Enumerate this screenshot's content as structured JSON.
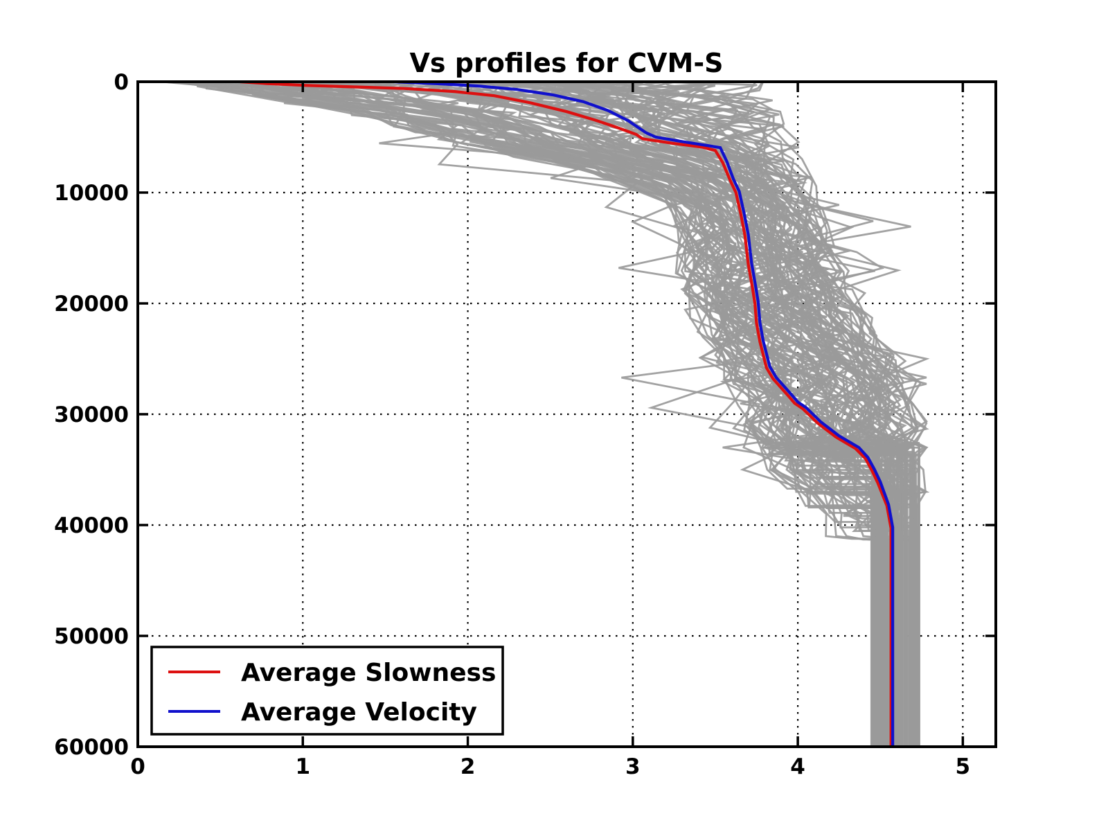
{
  "figure": {
    "background": "#ffffff"
  },
  "chart_data": {
    "type": "line",
    "title": "Vs profiles for CVM-S",
    "xlabel": "",
    "ylabel": "",
    "xlim": [
      0,
      5.2
    ],
    "ylim": [
      0,
      60000
    ],
    "y_inverted": true,
    "grid": true,
    "xticks": [
      0,
      1,
      2,
      3,
      4,
      5
    ],
    "yticks": [
      0,
      10000,
      20000,
      30000,
      40000,
      50000,
      60000
    ],
    "axis_color": "#000000",
    "legend": {
      "position": "lower-left",
      "entries": [
        {
          "label": "Average Slowness",
          "color": "#dd1010"
        },
        {
          "label": "Average Velocity",
          "color": "#1010cc"
        }
      ]
    },
    "series": [
      {
        "name": "Average Slowness",
        "color": "#dd1010",
        "points": [
          [
            0.62,
            0
          ],
          [
            0.78,
            160
          ],
          [
            1.02,
            330
          ],
          [
            1.32,
            470
          ],
          [
            1.62,
            610
          ],
          [
            1.92,
            880
          ],
          [
            2.16,
            1260
          ],
          [
            2.38,
            1900
          ],
          [
            2.6,
            2700
          ],
          [
            2.77,
            3450
          ],
          [
            2.9,
            4100
          ],
          [
            3.02,
            4750
          ],
          [
            3.06,
            5150
          ],
          [
            3.24,
            5550
          ],
          [
            3.42,
            5900
          ],
          [
            3.5,
            6200
          ],
          [
            3.545,
            7300
          ],
          [
            3.59,
            8900
          ],
          [
            3.625,
            10000
          ],
          [
            3.655,
            12000
          ],
          [
            3.68,
            13900
          ],
          [
            3.7,
            16500
          ],
          [
            3.725,
            18600
          ],
          [
            3.74,
            20000
          ],
          [
            3.75,
            21800
          ],
          [
            3.77,
            23450
          ],
          [
            3.81,
            25800
          ],
          [
            3.85,
            26800
          ],
          [
            3.94,
            28300
          ],
          [
            3.98,
            29000
          ],
          [
            4.03,
            29500
          ],
          [
            4.12,
            30800
          ],
          [
            4.23,
            32050
          ],
          [
            4.35,
            33100
          ],
          [
            4.41,
            34000
          ],
          [
            4.45,
            35100
          ],
          [
            4.485,
            36200
          ],
          [
            4.54,
            38250
          ],
          [
            4.565,
            40300
          ],
          [
            4.565,
            60000
          ]
        ]
      },
      {
        "name": "Average Velocity",
        "color": "#1010cc",
        "points": [
          [
            1.55,
            0
          ],
          [
            1.82,
            180
          ],
          [
            2.06,
            380
          ],
          [
            2.3,
            700
          ],
          [
            2.52,
            1200
          ],
          [
            2.7,
            1800
          ],
          [
            2.85,
            2600
          ],
          [
            2.97,
            3500
          ],
          [
            3.08,
            4600
          ],
          [
            3.14,
            5000
          ],
          [
            3.3,
            5400
          ],
          [
            3.45,
            5750
          ],
          [
            3.53,
            5950
          ],
          [
            3.57,
            7200
          ],
          [
            3.61,
            8800
          ],
          [
            3.645,
            9900
          ],
          [
            3.675,
            11900
          ],
          [
            3.7,
            13800
          ],
          [
            3.72,
            16400
          ],
          [
            3.745,
            18500
          ],
          [
            3.76,
            19900
          ],
          [
            3.77,
            21700
          ],
          [
            3.79,
            23350
          ],
          [
            3.83,
            25700
          ],
          [
            3.87,
            26700
          ],
          [
            3.96,
            28200
          ],
          [
            4.0,
            28900
          ],
          [
            4.05,
            29400
          ],
          [
            4.14,
            30700
          ],
          [
            4.25,
            31950
          ],
          [
            4.37,
            33000
          ],
          [
            4.425,
            33900
          ],
          [
            4.465,
            35000
          ],
          [
            4.5,
            36100
          ],
          [
            4.55,
            38150
          ],
          [
            4.575,
            40200
          ],
          [
            4.575,
            60000
          ]
        ]
      }
    ],
    "ensemble": {
      "description": "individual Vs profiles (gray)",
      "count": 120,
      "color": "#9a9a9a",
      "seed": 7,
      "envelope_lower": [
        [
          0.2,
          0
        ],
        [
          0.9,
          1800
        ],
        [
          1.5,
          3600
        ],
        [
          1.8,
          5200
        ],
        [
          2.15,
          6400
        ],
        [
          2.5,
          7200
        ],
        [
          2.95,
          8900
        ],
        [
          3.2,
          10500
        ],
        [
          3.27,
          13000
        ],
        [
          3.3,
          16000
        ],
        [
          3.33,
          20000
        ],
        [
          3.46,
          23000
        ],
        [
          3.56,
          25500
        ],
        [
          3.63,
          28000
        ],
        [
          3.7,
          31000
        ],
        [
          3.78,
          33500
        ],
        [
          3.9,
          36000
        ],
        [
          4.0,
          38500
        ],
        [
          4.08,
          41000
        ],
        [
          4.44,
          41500
        ],
        [
          4.44,
          60000
        ]
      ],
      "envelope_upper": [
        [
          3.75,
          0
        ],
        [
          3.85,
          2000
        ],
        [
          3.95,
          5000
        ],
        [
          4.05,
          8000
        ],
        [
          4.12,
          11000
        ],
        [
          4.2,
          14000
        ],
        [
          4.27,
          17000
        ],
        [
          4.33,
          20000
        ],
        [
          4.48,
          22500
        ],
        [
          4.62,
          25000
        ],
        [
          4.7,
          27500
        ],
        [
          4.74,
          30000
        ],
        [
          4.74,
          60000
        ]
      ],
      "basement_velocity_range": [
        4.44,
        4.74
      ],
      "basement_jump_depth_range": [
        32000,
        41500
      ],
      "max_depth": 60000
    }
  }
}
